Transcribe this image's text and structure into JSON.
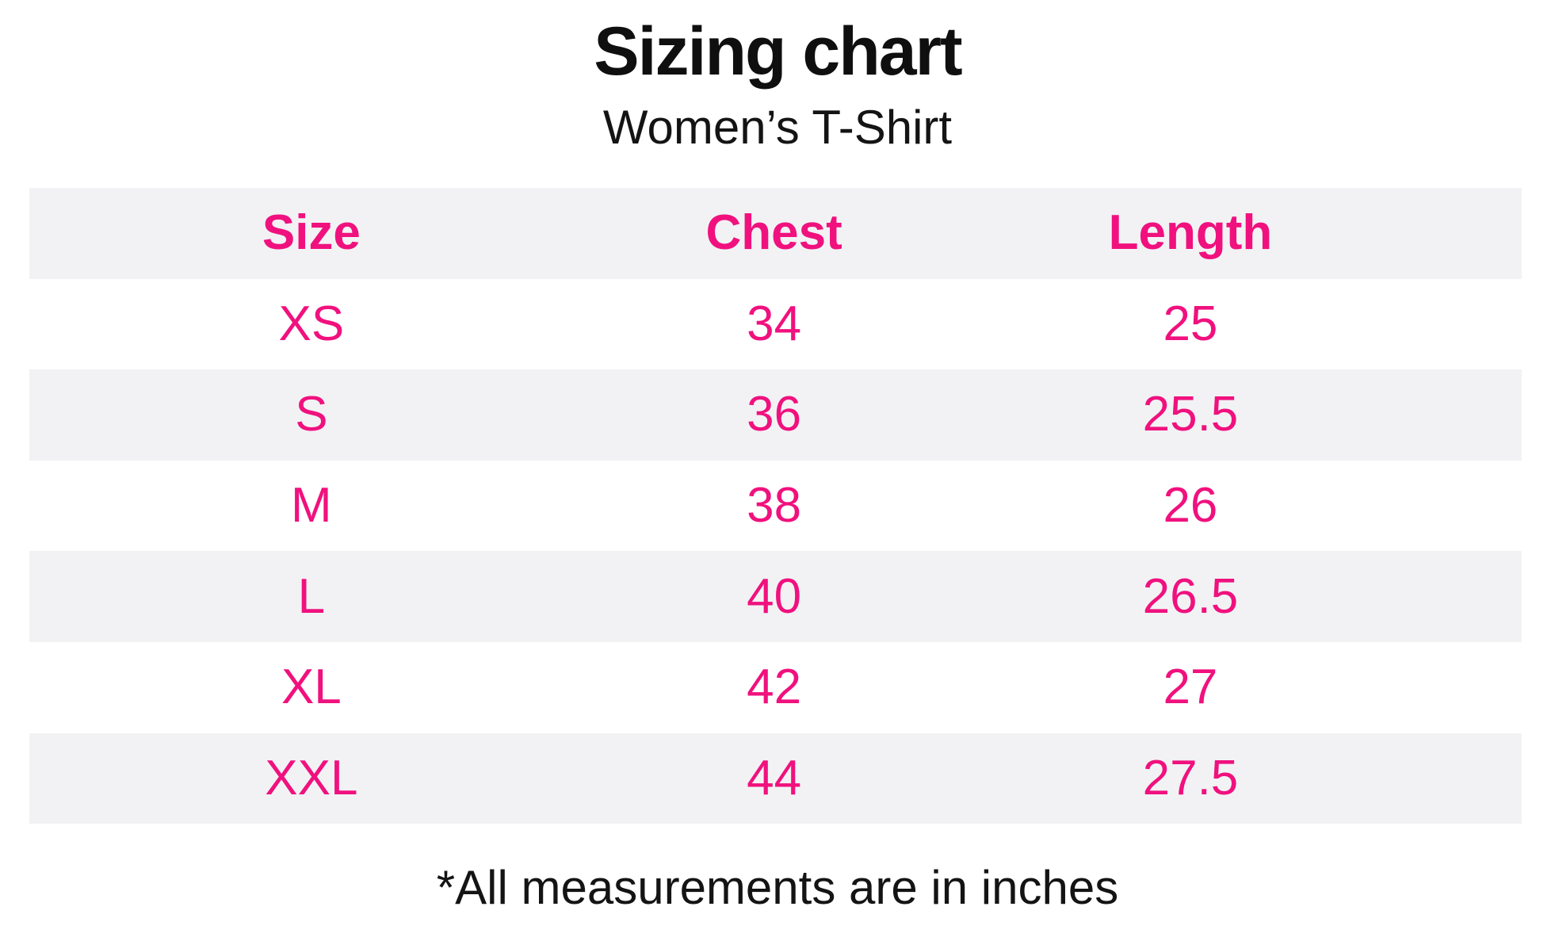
{
  "title": "Sizing chart",
  "subtitle": "Women’s T-Shirt",
  "footnote": "*All measurements are in inches",
  "colors": {
    "accent_pink": "#F0117E",
    "alt_row_bg": "#F2F2F4",
    "heading_text": "#0F0F0F",
    "page_bg": "#FFFFFF"
  },
  "table": {
    "headers": [
      "Size",
      "Chest",
      "Length"
    ],
    "rows": [
      [
        "XS",
        "34",
        "25"
      ],
      [
        "S",
        "36",
        "25.5"
      ],
      [
        "M",
        "38",
        "26"
      ],
      [
        "L",
        "40",
        "26.5"
      ],
      [
        "XL",
        "42",
        "27"
      ],
      [
        "XXL",
        "44",
        "27.5"
      ]
    ]
  },
  "chart_data": {
    "type": "table",
    "title": "Sizing chart",
    "subtitle": "Women’s T-Shirt",
    "columns": [
      "Size",
      "Chest",
      "Length"
    ],
    "rows": [
      [
        "XS",
        34,
        25
      ],
      [
        "S",
        36,
        25.5
      ],
      [
        "M",
        38,
        26
      ],
      [
        "L",
        40,
        26.5
      ],
      [
        "XL",
        42,
        27
      ],
      [
        "XXL",
        44,
        27.5
      ]
    ],
    "units": "inches",
    "footnote": "*All measurements are in inches",
    "layout_hints": {
      "header_style": "pink bold on light gray band",
      "row_striping": "white / light gray alternating",
      "text_color": "#F0117E",
      "alignment": "center"
    }
  }
}
